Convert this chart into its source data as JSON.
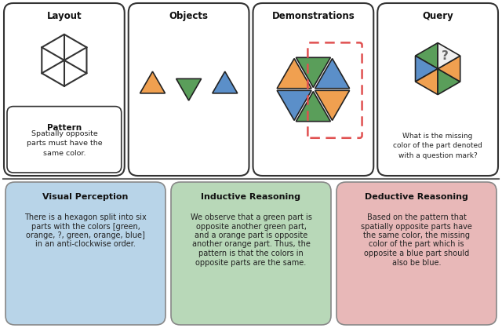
{
  "bg_color": "#ffffff",
  "top_labels": [
    "Layout",
    "Objects",
    "Demonstrations",
    "Query"
  ],
  "colors": {
    "green": "#5a9e5a",
    "orange": "#f0a050",
    "blue": "#5b8fc9",
    "white": "#f0f0f0",
    "dashed_red": "#e05050"
  },
  "bottom_titles": [
    "Visual Perception",
    "Inductive Reasoning",
    "Deductive Reasoning"
  ],
  "bottom_bg": [
    "#b8d4e8",
    "#b8d8b8",
    "#e8b8b8"
  ],
  "pattern_title": "Pattern",
  "pattern_text": "Spatially opposite\nparts must have the\nsame color.",
  "query_text": "What is the missing\ncolor of the part denoted\nwith a question mark?",
  "vp_lines": [
    "There is a hexagon split into six",
    "parts with the colors [green,",
    "orange, ?, green, orange, blue]",
    "in an anti-clockwise order."
  ],
  "ir_lines": [
    "We observe that a green part is",
    "opposite another green part,",
    "and a orange part is opposite",
    "another orange part. Thus, the",
    "pattern is that the colors in",
    "opposite parts are the same."
  ],
  "dr_lines": [
    "Based on the pattern that",
    "spatially opposite parts have",
    "the same color, the missing",
    "color of the part which is",
    "opposite a blue part should",
    "also be blue."
  ]
}
